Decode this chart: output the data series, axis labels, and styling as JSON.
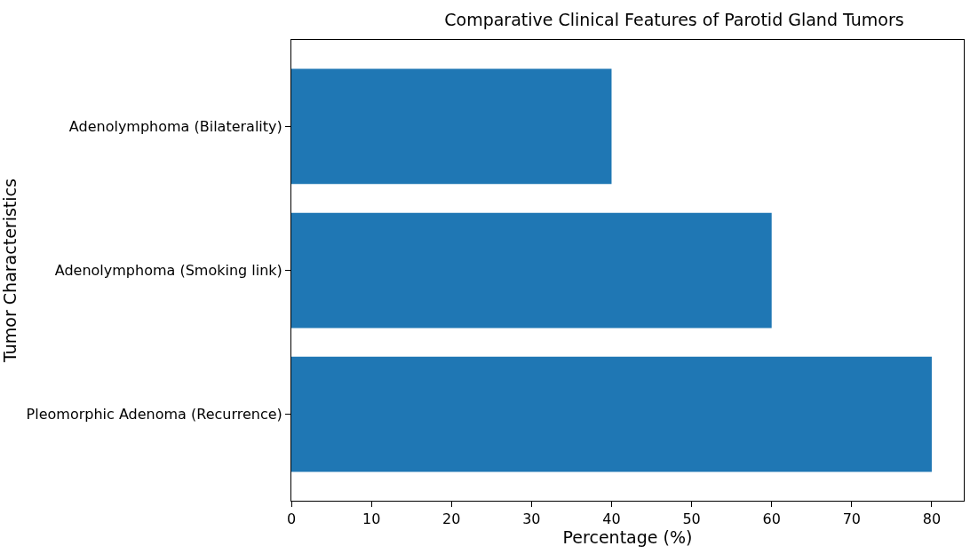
{
  "chart_data": {
    "type": "bar",
    "orientation": "horizontal",
    "title": "Comparative Clinical Features of Parotid Gland Tumors",
    "xlabel": "Percentage (%)",
    "ylabel": "Tumor Characteristics",
    "categories": [
      "Adenolymphoma (Bilaterality)",
      "Adenolymphoma (Smoking link)",
      "Pleomorphic Adenoma (Recurrence)"
    ],
    "values": [
      40,
      60,
      80
    ],
    "color": "#1f77b4",
    "xlim": [
      0,
      84
    ],
    "xticks": [
      0,
      10,
      20,
      30,
      40,
      50,
      60,
      70,
      80
    ]
  }
}
